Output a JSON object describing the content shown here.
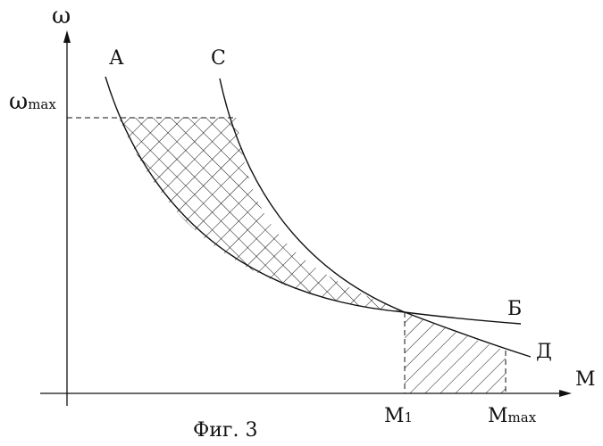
{
  "figure": {
    "axis_y_label": "ω",
    "axis_x_label": "M",
    "omega_max_label": "ω",
    "omega_max_sub": "max",
    "m1_label": "M",
    "m1_sub": "1",
    "mmax_label": "M",
    "mmax_sub": "max",
    "curve_a_label": "А",
    "curve_c_label": "С",
    "curve_b_label": "Б",
    "curve_d_label": "Д",
    "caption": "Фиг. 3"
  }
}
